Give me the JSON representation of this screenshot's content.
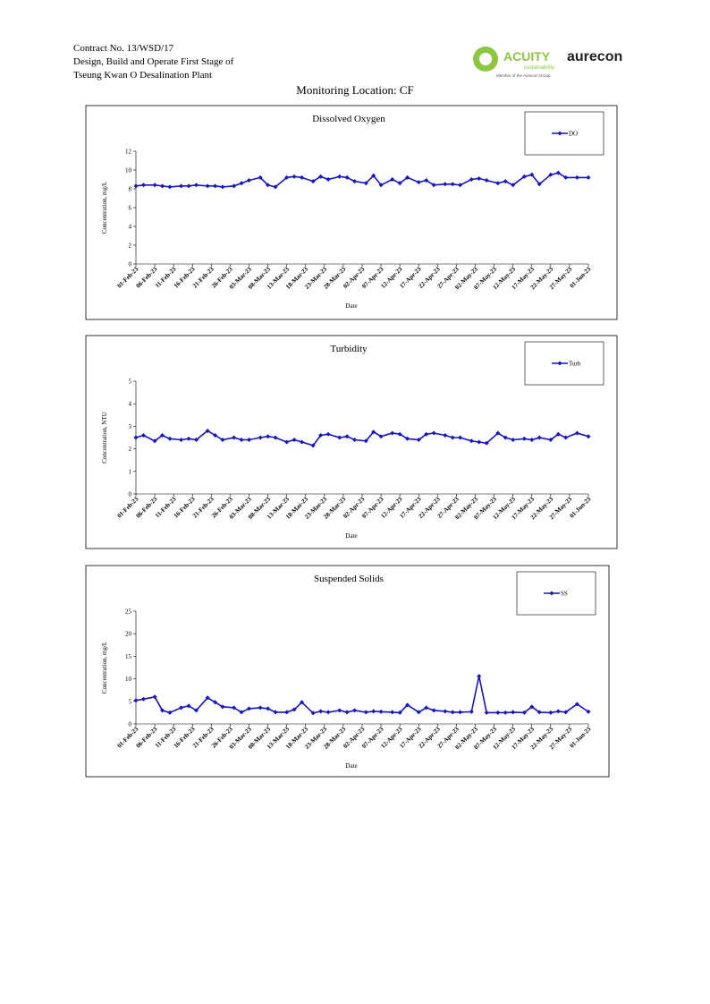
{
  "header": {
    "lines": [
      "Contract No. 13/WSD/17",
      "Design, Build and Operate First Stage of",
      "Tseung Kwan O Desalination Plant"
    ],
    "logo_acuity": "ACUITY",
    "logo_acuity_sub": "sustainability",
    "logo_member": "Member of the Aurecon Group",
    "logo_aurecon": "aurecon",
    "title": "Monitoring Location: CF"
  },
  "chart_data": [
    {
      "type": "line",
      "title": "Dissolved Oxygen",
      "xlabel": "Date",
      "ylabel": "Concentration, mg/L",
      "legend": "upper right",
      "x": [
        "2023-02-01",
        "2023-02-03",
        "2023-02-06",
        "2023-02-08",
        "2023-02-10",
        "2023-02-13",
        "2023-02-15",
        "2023-02-17",
        "2023-02-20",
        "2023-02-22",
        "2023-02-24",
        "2023-02-27",
        "2023-03-01",
        "2023-03-03",
        "2023-03-06",
        "2023-03-08",
        "2023-03-10",
        "2023-03-13",
        "2023-03-15",
        "2023-03-17",
        "2023-03-20",
        "2023-03-22",
        "2023-03-24",
        "2023-03-27",
        "2023-03-29",
        "2023-03-31",
        "2023-04-03",
        "2023-04-05",
        "2023-04-07",
        "2023-04-10",
        "2023-04-12",
        "2023-04-14",
        "2023-04-17",
        "2023-04-19",
        "2023-04-21",
        "2023-04-24",
        "2023-04-26",
        "2023-04-28",
        "2023-05-01",
        "2023-05-03",
        "2023-05-05",
        "2023-05-08",
        "2023-05-10",
        "2023-05-12",
        "2023-05-15",
        "2023-05-17",
        "2023-05-19",
        "2023-05-22",
        "2023-05-24",
        "2023-05-26",
        "2023-05-29",
        "2023-06-01"
      ],
      "series": [
        {
          "name": "DO",
          "color": "#1414c8",
          "values": [
            8.3,
            8.4,
            8.4,
            8.3,
            8.2,
            8.3,
            8.3,
            8.4,
            8.3,
            8.3,
            8.2,
            8.3,
            8.6,
            8.9,
            9.2,
            8.4,
            8.2,
            9.2,
            9.3,
            9.2,
            8.8,
            9.3,
            9.0,
            9.3,
            9.2,
            8.8,
            8.6,
            9.4,
            8.4,
            9.0,
            8.6,
            9.2,
            8.7,
            8.9,
            8.4,
            8.5,
            8.5,
            8.4,
            9.0,
            9.1,
            8.9,
            8.6,
            8.8,
            8.4,
            9.3,
            9.5,
            8.5,
            9.5,
            9.7,
            9.2,
            9.2,
            9.2
          ]
        }
      ],
      "xlim": [
        "2023-02-01",
        "2023-06-01"
      ],
      "xticks": [
        {
          "value": "2023-02-01",
          "label": "01-Feb-23"
        },
        {
          "value": "2023-02-06",
          "label": "06-Feb-23"
        },
        {
          "value": "2023-02-11",
          "label": "11-Feb-23"
        },
        {
          "value": "2023-02-16",
          "label": "16-Feb-23"
        },
        {
          "value": "2023-02-21",
          "label": "21-Feb-23"
        },
        {
          "value": "2023-02-26",
          "label": "26-Feb-23"
        },
        {
          "value": "2023-03-03",
          "label": "03-Mar-23"
        },
        {
          "value": "2023-03-08",
          "label": "08-Mar-23"
        },
        {
          "value": "2023-03-13",
          "label": "13-Mar-23"
        },
        {
          "value": "2023-03-18",
          "label": "18-Mar-23"
        },
        {
          "value": "2023-03-23",
          "label": "23-Mar-23"
        },
        {
          "value": "2023-03-28",
          "label": "28-Mar-23"
        },
        {
          "value": "2023-04-02",
          "label": "02-Apr-23"
        },
        {
          "value": "2023-04-07",
          "label": "07-Apr-23"
        },
        {
          "value": "2023-04-12",
          "label": "12-Apr-23"
        },
        {
          "value": "2023-04-17",
          "label": "17-Apr-23"
        },
        {
          "value": "2023-04-22",
          "label": "22-Apr-23"
        },
        {
          "value": "2023-04-27",
          "label": "27-Apr-23"
        },
        {
          "value": "2023-05-02",
          "label": "02-May-23"
        },
        {
          "value": "2023-05-07",
          "label": "07-May-23"
        },
        {
          "value": "2023-05-12",
          "label": "12-May-23"
        },
        {
          "value": "2023-05-17",
          "label": "17-May-23"
        },
        {
          "value": "2023-05-22",
          "label": "22-May-23"
        },
        {
          "value": "2023-05-27",
          "label": "27-May-23"
        },
        {
          "value": "2023-06-01",
          "label": "01-Jun-23"
        }
      ],
      "ylim": [
        0,
        12
      ],
      "yticks": [
        0,
        2,
        4,
        6,
        8,
        10,
        12
      ]
    },
    {
      "type": "line",
      "title": "Turbidity",
      "xlabel": "Date",
      "ylabel": "Concentration, NTU",
      "legend": "upper right",
      "x": [
        "2023-02-01",
        "2023-02-03",
        "2023-02-06",
        "2023-02-08",
        "2023-02-10",
        "2023-02-13",
        "2023-02-15",
        "2023-02-17",
        "2023-02-20",
        "2023-02-22",
        "2023-02-24",
        "2023-02-27",
        "2023-03-01",
        "2023-03-03",
        "2023-03-06",
        "2023-03-08",
        "2023-03-10",
        "2023-03-13",
        "2023-03-15",
        "2023-03-17",
        "2023-03-20",
        "2023-03-22",
        "2023-03-24",
        "2023-03-27",
        "2023-03-29",
        "2023-03-31",
        "2023-04-03",
        "2023-04-05",
        "2023-04-07",
        "2023-04-10",
        "2023-04-12",
        "2023-04-14",
        "2023-04-17",
        "2023-04-19",
        "2023-04-21",
        "2023-04-24",
        "2023-04-26",
        "2023-04-28",
        "2023-05-01",
        "2023-05-03",
        "2023-05-05",
        "2023-05-08",
        "2023-05-10",
        "2023-05-12",
        "2023-05-15",
        "2023-05-17",
        "2023-05-19",
        "2023-05-22",
        "2023-05-24",
        "2023-05-26",
        "2023-05-29",
        "2023-06-01"
      ],
      "series": [
        {
          "name": "Turb",
          "color": "#1414c8",
          "values": [
            2.5,
            2.6,
            2.35,
            2.6,
            2.45,
            2.4,
            2.45,
            2.4,
            2.8,
            2.6,
            2.4,
            2.5,
            2.4,
            2.4,
            2.5,
            2.55,
            2.5,
            2.3,
            2.4,
            2.3,
            2.15,
            2.6,
            2.65,
            2.5,
            2.55,
            2.4,
            2.35,
            2.75,
            2.55,
            2.7,
            2.65,
            2.45,
            2.4,
            2.65,
            2.7,
            2.6,
            2.5,
            2.5,
            2.35,
            2.3,
            2.25,
            2.7,
            2.5,
            2.4,
            2.45,
            2.4,
            2.5,
            2.4,
            2.65,
            2.5,
            2.7,
            2.55
          ]
        }
      ],
      "xlim": [
        "2023-02-01",
        "2023-06-01"
      ],
      "xticks": [
        {
          "value": "2023-02-01",
          "label": "01-Feb-23"
        },
        {
          "value": "2023-02-06",
          "label": "06-Feb-23"
        },
        {
          "value": "2023-02-11",
          "label": "11-Feb-23"
        },
        {
          "value": "2023-02-16",
          "label": "16-Feb-23"
        },
        {
          "value": "2023-02-21",
          "label": "21-Feb-23"
        },
        {
          "value": "2023-02-26",
          "label": "26-Feb-23"
        },
        {
          "value": "2023-03-03",
          "label": "03-Mar-23"
        },
        {
          "value": "2023-03-08",
          "label": "08-Mar-23"
        },
        {
          "value": "2023-03-13",
          "label": "13-Mar-23"
        },
        {
          "value": "2023-03-18",
          "label": "18-Mar-23"
        },
        {
          "value": "2023-03-23",
          "label": "23-Mar-23"
        },
        {
          "value": "2023-03-28",
          "label": "28-Mar-23"
        },
        {
          "value": "2023-04-02",
          "label": "02-Apr-23"
        },
        {
          "value": "2023-04-07",
          "label": "07-Apr-23"
        },
        {
          "value": "2023-04-12",
          "label": "12-Apr-23"
        },
        {
          "value": "2023-04-17",
          "label": "17-Apr-23"
        },
        {
          "value": "2023-04-22",
          "label": "22-Apr-23"
        },
        {
          "value": "2023-04-27",
          "label": "27-Apr-23"
        },
        {
          "value": "2023-05-02",
          "label": "02-May-23"
        },
        {
          "value": "2023-05-07",
          "label": "07-May-23"
        },
        {
          "value": "2023-05-12",
          "label": "12-May-23"
        },
        {
          "value": "2023-05-17",
          "label": "17-May-23"
        },
        {
          "value": "2023-05-22",
          "label": "22-May-23"
        },
        {
          "value": "2023-05-27",
          "label": "27-May-23"
        },
        {
          "value": "2023-06-01",
          "label": "01-Jun-23"
        }
      ],
      "ylim": [
        0,
        5
      ],
      "yticks": [
        0,
        1,
        2,
        3,
        4,
        5
      ]
    },
    {
      "type": "line",
      "title": "Suspended Solids",
      "xlabel": "Date",
      "ylabel": "Concentration, mg/L",
      "legend": "upper right",
      "x": [
        "2023-02-01",
        "2023-02-03",
        "2023-02-06",
        "2023-02-08",
        "2023-02-10",
        "2023-02-13",
        "2023-02-15",
        "2023-02-17",
        "2023-02-20",
        "2023-02-22",
        "2023-02-24",
        "2023-02-27",
        "2023-03-01",
        "2023-03-03",
        "2023-03-06",
        "2023-03-08",
        "2023-03-10",
        "2023-03-13",
        "2023-03-15",
        "2023-03-17",
        "2023-03-20",
        "2023-03-22",
        "2023-03-24",
        "2023-03-27",
        "2023-03-29",
        "2023-03-31",
        "2023-04-03",
        "2023-04-05",
        "2023-04-07",
        "2023-04-10",
        "2023-04-12",
        "2023-04-14",
        "2023-04-17",
        "2023-04-19",
        "2023-04-21",
        "2023-04-24",
        "2023-04-26",
        "2023-04-28",
        "2023-05-01",
        "2023-05-03",
        "2023-05-05",
        "2023-05-08",
        "2023-05-10",
        "2023-05-12",
        "2023-05-15",
        "2023-05-17",
        "2023-05-19",
        "2023-05-22",
        "2023-05-24",
        "2023-05-26",
        "2023-05-29",
        "2023-06-01"
      ],
      "series": [
        {
          "name": "SS",
          "color": "#1414c8",
          "values": [
            5.2,
            5.5,
            6,
            3,
            2.5,
            3.6,
            4,
            3,
            5.8,
            4.8,
            3.8,
            3.6,
            2.6,
            3.4,
            3.6,
            3.4,
            2.6,
            2.6,
            3.2,
            4.8,
            2.4,
            2.8,
            2.6,
            3.0,
            2.6,
            3.0,
            2.6,
            2.8,
            2.7,
            2.6,
            2.5,
            4.2,
            2.6,
            3.6,
            3.0,
            2.8,
            2.6,
            2.6,
            2.7,
            10.6,
            2.5,
            2.5,
            2.5,
            2.6,
            2.5,
            3.8,
            2.6,
            2.5,
            2.8,
            2.6,
            4.4,
            2.7
          ]
        }
      ],
      "xlim": [
        "2023-02-01",
        "2023-06-01"
      ],
      "xticks": [
        {
          "value": "2023-02-01",
          "label": "01-Feb-23"
        },
        {
          "value": "2023-02-06",
          "label": "06-Feb-23"
        },
        {
          "value": "2023-02-11",
          "label": "11-Feb-23"
        },
        {
          "value": "2023-02-16",
          "label": "16-Feb-23"
        },
        {
          "value": "2023-02-21",
          "label": "21-Feb-23"
        },
        {
          "value": "2023-02-26",
          "label": "26-Feb-23"
        },
        {
          "value": "2023-03-03",
          "label": "03-Mar-23"
        },
        {
          "value": "2023-03-08",
          "label": "08-Mar-23"
        },
        {
          "value": "2023-03-13",
          "label": "13-Mar-23"
        },
        {
          "value": "2023-03-18",
          "label": "18-Mar-23"
        },
        {
          "value": "2023-03-23",
          "label": "23-Mar-23"
        },
        {
          "value": "2023-03-28",
          "label": "28-Mar-23"
        },
        {
          "value": "2023-04-02",
          "label": "02-Apr-23"
        },
        {
          "value": "2023-04-07",
          "label": "07-Apr-23"
        },
        {
          "value": "2023-04-12",
          "label": "12-Apr-23"
        },
        {
          "value": "2023-04-17",
          "label": "17-Apr-23"
        },
        {
          "value": "2023-04-22",
          "label": "22-Apr-23"
        },
        {
          "value": "2023-04-27",
          "label": "27-Apr-23"
        },
        {
          "value": "2023-05-02",
          "label": "02-May-23"
        },
        {
          "value": "2023-05-07",
          "label": "07-May-23"
        },
        {
          "value": "2023-05-12",
          "label": "12-May-23"
        },
        {
          "value": "2023-05-17",
          "label": "17-May-23"
        },
        {
          "value": "2023-05-22",
          "label": "22-May-23"
        },
        {
          "value": "2023-05-27",
          "label": "27-May-23"
        },
        {
          "value": "2023-06-01",
          "label": "01-Jun-23"
        }
      ],
      "ylim": [
        0,
        25
      ],
      "yticks": [
        0,
        5,
        10,
        15,
        20,
        25
      ]
    }
  ]
}
